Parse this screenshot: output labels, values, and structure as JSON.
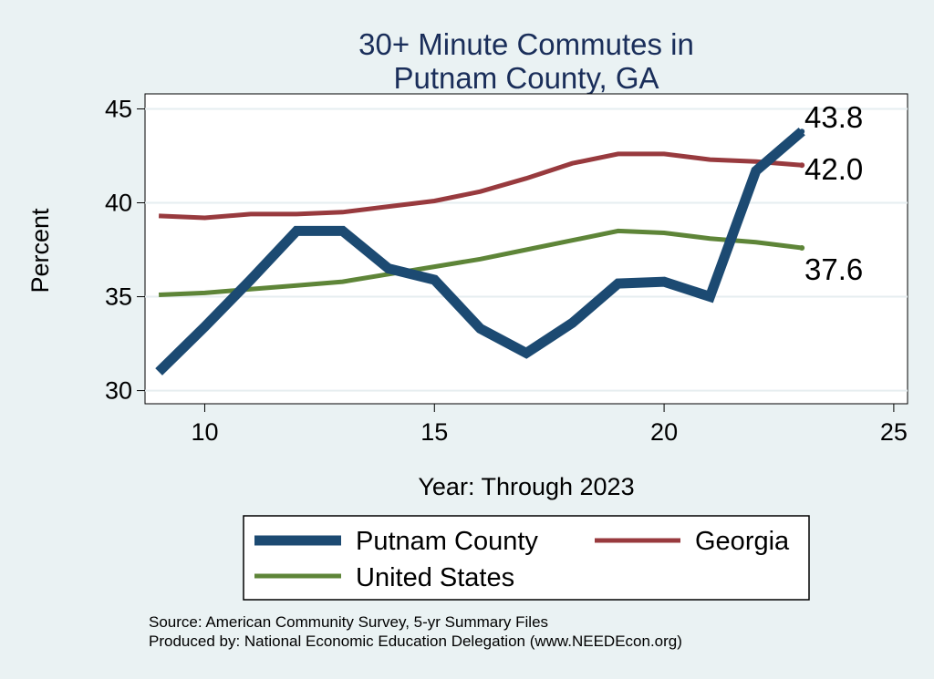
{
  "chart_data": {
    "type": "line",
    "title": [
      "30+ Minute Commutes in",
      "Putnam County, GA"
    ],
    "xlabel": "Year: Through 2023",
    "ylabel": "Percent",
    "xlim": [
      8.7,
      25.3
    ],
    "ylim": [
      29.3,
      45.8
    ],
    "xticks": [
      10,
      15,
      20,
      25
    ],
    "yticks": [
      30,
      35,
      40,
      45
    ],
    "grid": true,
    "legend_placement": "bottom",
    "x": [
      9,
      10,
      11,
      12,
      13,
      14,
      15,
      16,
      17,
      18,
      19,
      20,
      21,
      22,
      23
    ],
    "series": [
      {
        "name": "Putnam County",
        "color": "#1c4a72",
        "values": [
          31.0,
          33.4,
          35.9,
          38.5,
          38.5,
          36.5,
          35.9,
          33.3,
          32.0,
          33.6,
          35.7,
          35.8,
          35.0,
          41.7,
          43.8
        ],
        "end_label": "43.8"
      },
      {
        "name": "Georgia",
        "color": "#983a3e",
        "values": [
          39.3,
          39.2,
          39.4,
          39.4,
          39.5,
          39.8,
          40.1,
          40.6,
          41.3,
          42.1,
          42.6,
          42.6,
          42.3,
          42.2,
          42.0
        ],
        "end_label": "42.0"
      },
      {
        "name": "United States",
        "color": "#5e8538",
        "values": [
          35.1,
          35.2,
          35.4,
          35.6,
          35.8,
          36.2,
          36.6,
          37.0,
          37.5,
          38.0,
          38.5,
          38.4,
          38.1,
          37.9,
          37.6
        ],
        "end_label": "37.6"
      }
    ],
    "source": [
      "Source: American Community Survey, 5-yr Summary Files",
      "Produced by: National Economic Education Delegation (www.NEEDEcon.org)"
    ]
  }
}
